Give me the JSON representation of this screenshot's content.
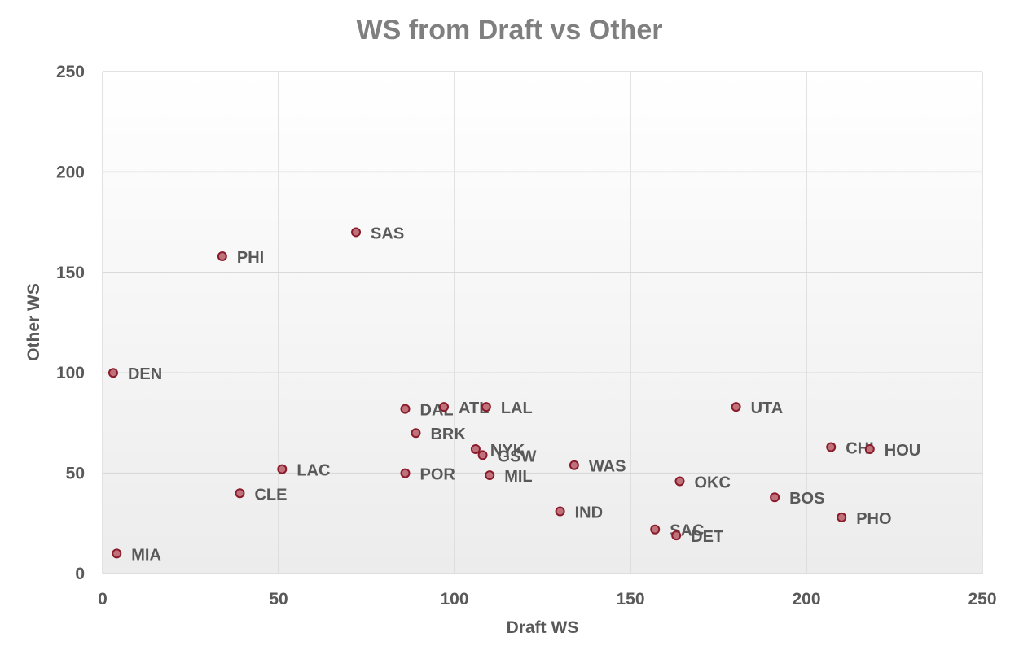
{
  "chart_data": {
    "type": "scatter",
    "title": "WS from Draft vs Other",
    "xlabel": "Draft WS",
    "ylabel": "Other WS",
    "xlim": [
      0,
      250
    ],
    "ylim": [
      0,
      250
    ],
    "xticks": [
      "0",
      "50",
      "100",
      "150",
      "200",
      "250"
    ],
    "yticks": [
      "0",
      "50",
      "100",
      "150",
      "200",
      "250"
    ],
    "grid": true,
    "legend": "none",
    "marker_fill": "#c0727a",
    "marker_edge": "#8b1a2b",
    "points": [
      {
        "label": "SAS",
        "x": 72,
        "y": 170
      },
      {
        "label": "PHI",
        "x": 34,
        "y": 158
      },
      {
        "label": "DEN",
        "x": 3,
        "y": 100
      },
      {
        "label": "DAL",
        "x": 86,
        "y": 82
      },
      {
        "label": "ATL",
        "x": 97,
        "y": 83
      },
      {
        "label": "LAL",
        "x": 109,
        "y": 83
      },
      {
        "label": "UTA",
        "x": 180,
        "y": 83
      },
      {
        "label": "BRK",
        "x": 89,
        "y": 70
      },
      {
        "label": "NYK",
        "x": 106,
        "y": 62
      },
      {
        "label": "GSW",
        "x": 108,
        "y": 59
      },
      {
        "label": "CHI",
        "x": 207,
        "y": 63
      },
      {
        "label": "HOU",
        "x": 218,
        "y": 62
      },
      {
        "label": "WAS",
        "x": 134,
        "y": 54
      },
      {
        "label": "LAC",
        "x": 51,
        "y": 52
      },
      {
        "label": "POR",
        "x": 86,
        "y": 50
      },
      {
        "label": "MIL",
        "x": 110,
        "y": 49
      },
      {
        "label": "OKC",
        "x": 164,
        "y": 46
      },
      {
        "label": "CLE",
        "x": 39,
        "y": 40
      },
      {
        "label": "BOS",
        "x": 191,
        "y": 38
      },
      {
        "label": "IND",
        "x": 130,
        "y": 31
      },
      {
        "label": "PHO",
        "x": 210,
        "y": 28
      },
      {
        "label": "SAC",
        "x": 157,
        "y": 22
      },
      {
        "label": "DET",
        "x": 163,
        "y": 19
      },
      {
        "label": "MIA",
        "x": 4,
        "y": 10
      }
    ]
  }
}
